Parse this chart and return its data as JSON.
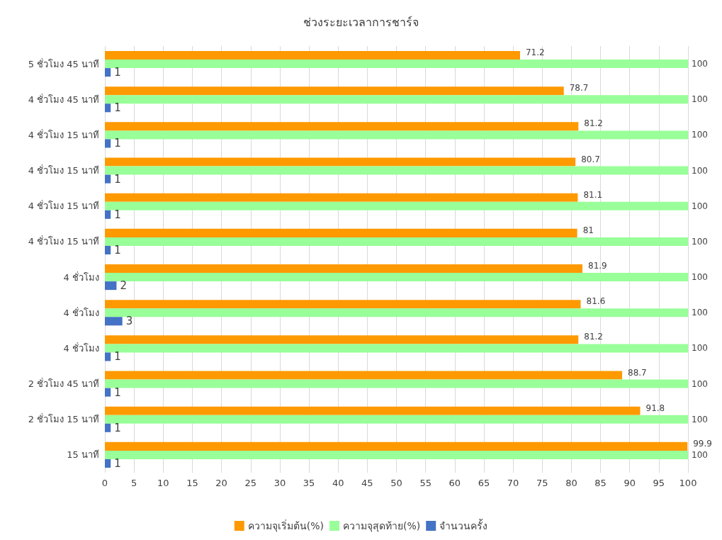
{
  "chart_data": {
    "type": "bar",
    "orientation": "horizontal",
    "title": "ช่วงระยะเวลาการชาร์จ",
    "categories": [
      "5 ชั่วโมง 45 นาที",
      "4 ชั่วโมง 45 นาที",
      "4 ชั่วโมง 15 นาที",
      "4 ชั่วโมง 15 นาที",
      "4 ชั่วโมง 15 นาที",
      "4 ชั่วโมง 15 นาที",
      "4 ชั่วโมง",
      "4 ชั่วโมง",
      "4 ชั่วโมง",
      "2 ชั่วโมง 45 นาที",
      "2 ชั่วโมง 15 นาที",
      "15 นาที"
    ],
    "series": [
      {
        "name": "ความจุเริ่มต้น(%)",
        "color": "#ff9900",
        "values": [
          71.2,
          78.7,
          81.2,
          80.7,
          81.1,
          81,
          81.9,
          81.6,
          81.2,
          88.7,
          91.8,
          99.9
        ]
      },
      {
        "name": "ความจุสุดท้าย(%)",
        "color": "#99ff99",
        "values": [
          100,
          100,
          100,
          100,
          100,
          100,
          100,
          100,
          100,
          100,
          100,
          100
        ]
      },
      {
        "name": "จำนวนครั้ง",
        "color": "#4472c4",
        "values": [
          1,
          1,
          1,
          1,
          1,
          1,
          2,
          3,
          1,
          1,
          1,
          1
        ]
      }
    ],
    "xlim": [
      0,
      100
    ],
    "xticks": [
      0,
      5,
      10,
      15,
      20,
      25,
      30,
      35,
      40,
      45,
      50,
      55,
      60,
      65,
      70,
      75,
      80,
      85,
      90,
      95,
      100
    ],
    "grid": "x",
    "legend": "bottom",
    "data_labels": true
  }
}
